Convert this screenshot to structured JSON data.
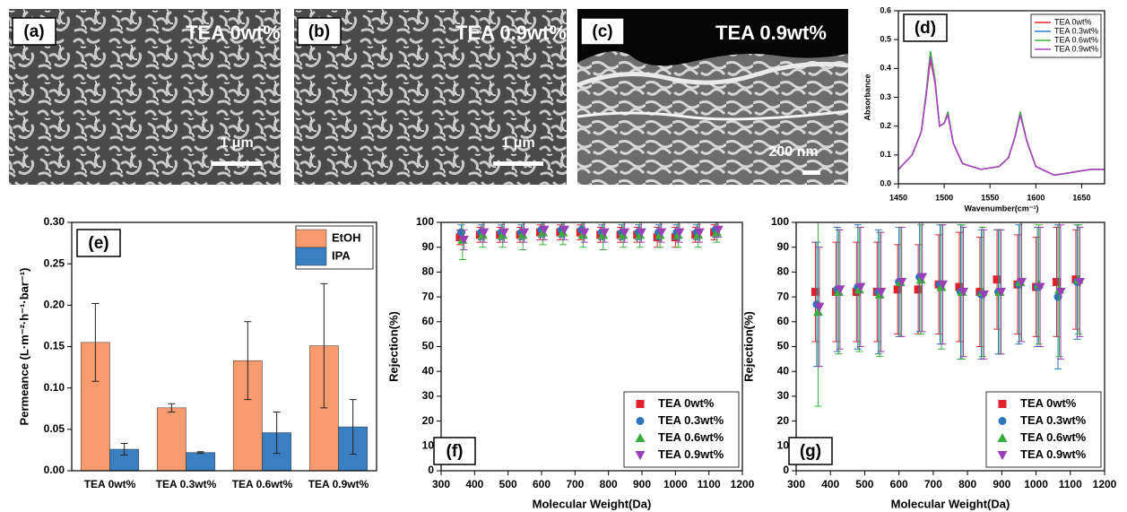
{
  "images": [
    {
      "label": "(a)",
      "caption": "TEA 0wt%",
      "scale": "1 μm"
    },
    {
      "label": "(b)",
      "caption": "TEA 0.9wt%",
      "scale": "1 μm"
    },
    {
      "label": "(c)",
      "caption": "TEA 0.9wt%",
      "scale": "200 nm"
    }
  ],
  "chart_data": [
    {
      "type": "line",
      "label": "(d)",
      "xlabel": "Wavenumber(cm⁻¹)",
      "ylabel": "Absorbance",
      "x": [
        1450,
        1465,
        1475,
        1480,
        1485,
        1490,
        1495,
        1500,
        1504,
        1510,
        1520,
        1540,
        1560,
        1570,
        1577,
        1583,
        1590,
        1600,
        1620,
        1640,
        1660,
        1675
      ],
      "xlim": [
        1450,
        1675
      ],
      "xticks": [
        1450,
        1500,
        1550,
        1600,
        1650
      ],
      "ylim": [
        0,
        0.6
      ],
      "yticks": [
        {
          "value": 0,
          "label": "0.0"
        },
        0.1,
        0.2,
        0.3,
        0.4,
        0.5,
        0.6
      ],
      "legend": "upper right",
      "series": [
        {
          "name": "TEA 0wt%",
          "color": "#e8262a",
          "values": [
            0.05,
            0.1,
            0.18,
            0.3,
            0.43,
            0.35,
            0.2,
            0.21,
            0.24,
            0.14,
            0.07,
            0.05,
            0.06,
            0.09,
            0.16,
            0.24,
            0.15,
            0.06,
            0.03,
            0.04,
            0.05,
            0.05
          ]
        },
        {
          "name": "TEA 0.3wt%",
          "color": "#2f7fd0",
          "values": [
            0.05,
            0.1,
            0.18,
            0.3,
            0.45,
            0.36,
            0.2,
            0.21,
            0.245,
            0.14,
            0.07,
            0.05,
            0.06,
            0.09,
            0.16,
            0.245,
            0.15,
            0.06,
            0.03,
            0.04,
            0.05,
            0.05
          ]
        },
        {
          "name": "TEA 0.6wt%",
          "color": "#3bb33b",
          "values": [
            0.05,
            0.1,
            0.18,
            0.31,
            0.46,
            0.36,
            0.2,
            0.21,
            0.25,
            0.14,
            0.07,
            0.05,
            0.06,
            0.09,
            0.16,
            0.25,
            0.15,
            0.06,
            0.03,
            0.04,
            0.05,
            0.05
          ]
        },
        {
          "name": "TEA 0.9wt%",
          "color": "#b040c8",
          "values": [
            0.05,
            0.1,
            0.18,
            0.3,
            0.44,
            0.35,
            0.2,
            0.21,
            0.24,
            0.14,
            0.07,
            0.05,
            0.06,
            0.09,
            0.16,
            0.24,
            0.15,
            0.06,
            0.03,
            0.04,
            0.05,
            0.05
          ]
        }
      ]
    },
    {
      "type": "bar",
      "label": "(e)",
      "ylabel": "Permeance (L·m⁻²·h⁻¹·bar⁻¹)",
      "categories": [
        "TEA 0wt%",
        "TEA 0.3wt%",
        "TEA 0.6wt%",
        "TEA 0.9wt%"
      ],
      "ylim": [
        0,
        0.3
      ],
      "yticks": [
        {
          "value": 0,
          "label": "0.00"
        },
        0.05,
        {
          "value": 0.1,
          "label": "0.10"
        },
        0.15,
        {
          "value": 0.2,
          "label": "0.20"
        },
        0.25,
        {
          "value": 0.3,
          "label": "0.30"
        }
      ],
      "legend": "upper right",
      "series": [
        {
          "name": "EtOH",
          "color": "#f79a6e",
          "values": [
            0.155,
            0.076,
            0.133,
            0.151
          ],
          "errors": [
            0.047,
            0.005,
            0.047,
            0.075
          ]
        },
        {
          "name": "IPA",
          "color": "#3a7fc1",
          "values": [
            0.026,
            0.022,
            0.046,
            0.053
          ],
          "errors": [
            0.007,
            0.001,
            0.025,
            0.033
          ]
        }
      ]
    },
    {
      "type": "scatter",
      "label": "(f)",
      "xlabel": "Molecular Weight(Da)",
      "ylabel": "Rejection(%)",
      "x": [
        362,
        422,
        482,
        542,
        602,
        662,
        722,
        782,
        842,
        892,
        952,
        1006,
        1066,
        1122
      ],
      "xlim": [
        300,
        1200
      ],
      "xticks": [
        300,
        400,
        500,
        600,
        700,
        800,
        900,
        1000,
        1100,
        1200
      ],
      "ylim": [
        0,
        100
      ],
      "yticks": [
        0,
        10,
        20,
        30,
        40,
        50,
        60,
        70,
        80,
        90,
        100
      ],
      "legend": "lower right",
      "series": [
        {
          "name": "TEA 0wt%",
          "color": "#e0202a",
          "marker": "square",
          "values": [
            94,
            95,
            95,
            95,
            96,
            96,
            96,
            95,
            95,
            95,
            94,
            94,
            95,
            96
          ],
          "errors": [
            3,
            3,
            3,
            3,
            3,
            3,
            3,
            3,
            3,
            3,
            4,
            4,
            3,
            3
          ]
        },
        {
          "name": "TEA 0.3wt%",
          "color": "#2d73b8",
          "marker": "circle",
          "values": [
            96,
            96,
            96,
            96,
            97,
            97,
            97,
            96,
            96,
            96,
            96,
            96,
            96,
            97
          ],
          "errors": [
            3,
            3,
            3,
            3,
            3,
            3,
            3,
            3,
            3,
            3,
            3,
            3,
            3,
            3
          ]
        },
        {
          "name": "TEA 0.6wt%",
          "color": "#37b03a",
          "marker": "triangle-up",
          "values": [
            93,
            95,
            95,
            95,
            96,
            96,
            95,
            95,
            95,
            95,
            95,
            95,
            95,
            96
          ],
          "errors": [
            8,
            5,
            5,
            6,
            5,
            5,
            5,
            6,
            5,
            5,
            5,
            5,
            5,
            4
          ]
        },
        {
          "name": "TEA 0.9wt%",
          "color": "#9a3fb5",
          "marker": "triangle-down",
          "values": [
            93,
            96,
            96,
            96,
            97,
            97,
            96,
            96,
            96,
            96,
            96,
            96,
            96,
            97
          ],
          "errors": [
            4,
            4,
            4,
            4,
            4,
            4,
            4,
            4,
            4,
            4,
            4,
            4,
            4,
            3
          ]
        }
      ]
    },
    {
      "type": "scatter",
      "label": "(g)",
      "xlabel": "Molecular Weight(Da)",
      "ylabel": "Rejection(%)",
      "x": [
        362,
        422,
        482,
        542,
        602,
        662,
        722,
        782,
        842,
        892,
        952,
        1006,
        1066,
        1122
      ],
      "xlim": [
        300,
        1200
      ],
      "xticks": [
        300,
        400,
        500,
        600,
        700,
        800,
        900,
        1000,
        1100,
        1200
      ],
      "ylim": [
        0,
        100
      ],
      "yticks": [
        0,
        10,
        20,
        30,
        40,
        50,
        60,
        70,
        80,
        90,
        100
      ],
      "legend": "lower right",
      "series": [
        {
          "name": "TEA 0wt%",
          "color": "#e0202a",
          "marker": "square",
          "values": [
            72,
            72,
            72,
            72,
            73,
            73,
            75,
            74,
            72,
            77,
            75,
            74,
            76,
            77
          ],
          "errors": [
            20,
            20,
            20,
            20,
            18,
            18,
            20,
            22,
            22,
            20,
            20,
            20,
            22,
            20
          ]
        },
        {
          "name": "TEA 0.3wt%",
          "color": "#2d73b8",
          "marker": "circle",
          "values": [
            67,
            73,
            74,
            72,
            76,
            78,
            75,
            72,
            71,
            72,
            75,
            74,
            70,
            76
          ],
          "errors": [
            25,
            25,
            25,
            25,
            22,
            22,
            24,
            27,
            26,
            25,
            24,
            24,
            29,
            23
          ]
        },
        {
          "name": "TEA 0.6wt%",
          "color": "#37b03a",
          "marker": "triangle-up",
          "values": [
            64,
            72,
            73,
            71,
            76,
            77,
            74,
            72,
            72,
            72,
            76,
            75,
            73,
            77
          ],
          "errors": [
            38,
            25,
            25,
            25,
            22,
            22,
            25,
            27,
            26,
            25,
            24,
            24,
            27,
            22
          ]
        },
        {
          "name": "TEA 0.9wt%",
          "color": "#9a3fb5",
          "marker": "triangle-down",
          "values": [
            66,
            73,
            74,
            72,
            76,
            78,
            75,
            72,
            71,
            72,
            76,
            74,
            72,
            76
          ],
          "errors": [
            24,
            24,
            24,
            24,
            22,
            22,
            24,
            26,
            26,
            25,
            24,
            24,
            27,
            22
          ]
        }
      ]
    }
  ]
}
